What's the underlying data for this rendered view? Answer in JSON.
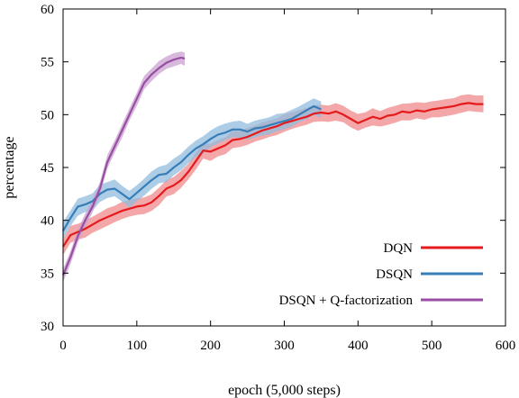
{
  "chart_data": {
    "type": "line",
    "xlabel": "epoch (5,000 steps)",
    "ylabel": "percentage",
    "xlim": [
      0,
      600
    ],
    "ylim": [
      30,
      60
    ],
    "xticks": [
      0,
      100,
      200,
      300,
      400,
      500,
      600
    ],
    "yticks": [
      30,
      35,
      40,
      45,
      50,
      55,
      60
    ],
    "grid": false,
    "legend_position": "bottom-right",
    "series": [
      {
        "name": "DQN",
        "color": "#e41a1c",
        "band_color": "#f08a8b",
        "x": [
          0,
          10,
          20,
          30,
          40,
          50,
          60,
          70,
          80,
          90,
          100,
          110,
          120,
          130,
          140,
          150,
          160,
          170,
          180,
          190,
          200,
          210,
          220,
          230,
          240,
          250,
          260,
          270,
          280,
          290,
          300,
          310,
          320,
          330,
          340,
          350,
          360,
          370,
          380,
          390,
          400,
          410,
          420,
          430,
          440,
          450,
          460,
          470,
          480,
          490,
          500,
          510,
          520,
          530,
          540,
          550,
          560,
          570
        ],
        "y": [
          37.5,
          38.6,
          38.9,
          39.2,
          39.6,
          40.0,
          40.3,
          40.6,
          40.9,
          41.1,
          41.3,
          41.4,
          41.7,
          42.3,
          43.0,
          43.3,
          43.8,
          44.6,
          45.6,
          46.6,
          46.5,
          46.8,
          47.1,
          47.6,
          47.7,
          47.9,
          48.2,
          48.5,
          48.7,
          48.9,
          49.2,
          49.4,
          49.6,
          49.8,
          50.1,
          50.2,
          50.1,
          50.3,
          50.0,
          49.6,
          49.2,
          49.5,
          49.8,
          49.6,
          49.9,
          50.0,
          50.3,
          50.2,
          50.4,
          50.3,
          50.5,
          50.6,
          50.7,
          50.8,
          51.0,
          51.1,
          51.0,
          51.0
        ],
        "band": 0.9
      },
      {
        "name": "DSQN",
        "color": "#377eb8",
        "band_color": "#92bcdf",
        "x": [
          0,
          10,
          20,
          30,
          40,
          50,
          60,
          70,
          80,
          90,
          100,
          110,
          120,
          130,
          140,
          150,
          160,
          170,
          180,
          190,
          200,
          210,
          220,
          230,
          240,
          250,
          260,
          270,
          280,
          290,
          300,
          310,
          320,
          330,
          340,
          350
        ],
        "y": [
          39.0,
          40.2,
          41.3,
          41.5,
          41.8,
          42.5,
          42.9,
          43.0,
          42.5,
          42.0,
          42.6,
          43.2,
          43.8,
          44.3,
          44.4,
          45.0,
          45.5,
          46.2,
          46.8,
          47.2,
          47.7,
          48.1,
          48.3,
          48.6,
          48.6,
          48.4,
          48.7,
          48.8,
          49.0,
          49.2,
          49.4,
          49.6,
          50.0,
          50.4,
          50.8,
          50.5
        ],
        "band": 0.9
      },
      {
        "name": "DSQN + Q-factorization",
        "color": "#984ea3",
        "band_color": "#c9a2d0",
        "x": [
          0,
          10,
          20,
          30,
          40,
          50,
          60,
          70,
          80,
          90,
          100,
          110,
          120,
          130,
          140,
          150,
          160,
          165
        ],
        "y": [
          34.8,
          36.5,
          38.5,
          40.0,
          41.3,
          43.0,
          45.5,
          47.0,
          48.5,
          50.0,
          51.5,
          53.0,
          53.8,
          54.4,
          54.9,
          55.2,
          55.4,
          55.3
        ],
        "band": 0.7
      }
    ]
  }
}
